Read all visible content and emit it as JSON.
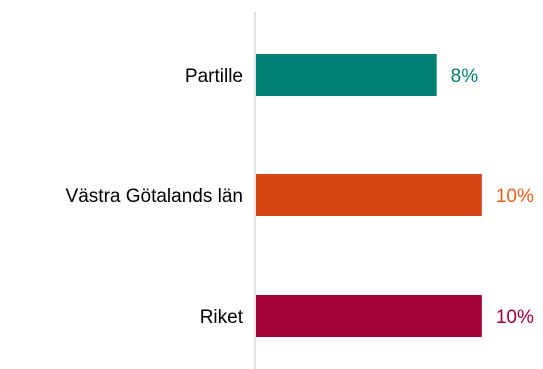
{
  "chart_data": {
    "type": "bar",
    "orientation": "horizontal",
    "categories": [
      "Partille",
      "Västra Götalands län",
      "Riket"
    ],
    "values": [
      8,
      10,
      10
    ],
    "value_labels": [
      "8%",
      "10%",
      "10%"
    ],
    "unit": "%",
    "colors": [
      "#007f73",
      "#d64411",
      "#a3003a"
    ],
    "label_colors": [
      "#007f73",
      "#e8601c",
      "#a3003a"
    ],
    "axis_color": "#d9d9d9",
    "xlim": [
      0,
      12
    ],
    "grid": false,
    "legend": "none"
  }
}
